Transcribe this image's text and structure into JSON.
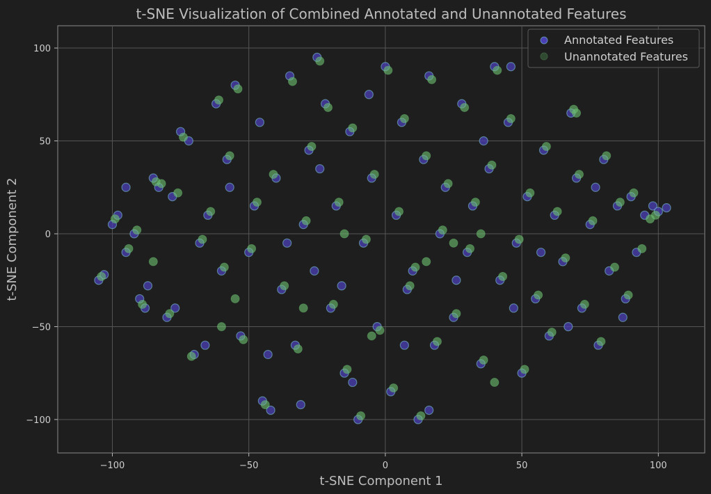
{
  "chart_data": {
    "type": "scatter",
    "title": "t-SNE Visualization of Combined Annotated and Unannotated Features",
    "xlabel": "t-SNE Component 1",
    "ylabel": "t-SNE Component 2",
    "xlim": [
      -120,
      117
    ],
    "ylim": [
      -118,
      112
    ],
    "xticks": [
      -100,
      -50,
      0,
      50,
      100
    ],
    "yticks": [
      -100,
      -50,
      0,
      50,
      100
    ],
    "xtick_labels": [
      "−100",
      "−50",
      "0",
      "50",
      "100"
    ],
    "ytick_labels": [
      "−100",
      "−50",
      "0",
      "50",
      "100"
    ],
    "grid": true,
    "legend_position": "top-right",
    "colors": {
      "background": "#1e1e1e",
      "grid": "#555555",
      "annotated": "#4a3fb5",
      "annotated_edge": "#7fc8d8",
      "unannotated": "#6cc070"
    },
    "series": [
      {
        "name": "Annotated Features",
        "color": "#4a3fb5",
        "points": [
          [
            -105,
            -25
          ],
          [
            -103,
            -22
          ],
          [
            -100,
            5
          ],
          [
            -98,
            10
          ],
          [
            -95,
            -10
          ],
          [
            -92,
            0
          ],
          [
            -90,
            -35
          ],
          [
            -88,
            -40
          ],
          [
            -85,
            30
          ],
          [
            -83,
            25
          ],
          [
            -80,
            -45
          ],
          [
            -78,
            20
          ],
          [
            -75,
            55
          ],
          [
            -72,
            50
          ],
          [
            -70,
            -65
          ],
          [
            -68,
            -5
          ],
          [
            -65,
            10
          ],
          [
            -62,
            70
          ],
          [
            -60,
            -20
          ],
          [
            -58,
            40
          ],
          [
            -55,
            80
          ],
          [
            -53,
            -55
          ],
          [
            -50,
            -10
          ],
          [
            -48,
            15
          ],
          [
            -46,
            60
          ],
          [
            -45,
            -90
          ],
          [
            -42,
            -95
          ],
          [
            -40,
            30
          ],
          [
            -38,
            -30
          ],
          [
            -35,
            85
          ],
          [
            -33,
            -60
          ],
          [
            -30,
            5
          ],
          [
            -28,
            45
          ],
          [
            -26,
            -20
          ],
          [
            -25,
            95
          ],
          [
            -22,
            70
          ],
          [
            -20,
            -40
          ],
          [
            -18,
            15
          ],
          [
            -15,
            -75
          ],
          [
            -13,
            55
          ],
          [
            -10,
            -100
          ],
          [
            -8,
            -5
          ],
          [
            -5,
            30
          ],
          [
            -3,
            -50
          ],
          [
            0,
            90
          ],
          [
            2,
            -85
          ],
          [
            4,
            10
          ],
          [
            6,
            60
          ],
          [
            8,
            -30
          ],
          [
            10,
            -20
          ],
          [
            12,
            -100
          ],
          [
            14,
            40
          ],
          [
            16,
            85
          ],
          [
            18,
            -60
          ],
          [
            20,
            0
          ],
          [
            22,
            25
          ],
          [
            25,
            -45
          ],
          [
            28,
            70
          ],
          [
            30,
            -10
          ],
          [
            32,
            15
          ],
          [
            35,
            -70
          ],
          [
            38,
            35
          ],
          [
            40,
            90
          ],
          [
            42,
            -25
          ],
          [
            45,
            60
          ],
          [
            48,
            -5
          ],
          [
            50,
            -75
          ],
          [
            52,
            20
          ],
          [
            55,
            -35
          ],
          [
            58,
            45
          ],
          [
            60,
            -55
          ],
          [
            62,
            10
          ],
          [
            65,
            -15
          ],
          [
            68,
            65
          ],
          [
            70,
            30
          ],
          [
            72,
            -40
          ],
          [
            75,
            5
          ],
          [
            78,
            -60
          ],
          [
            80,
            40
          ],
          [
            82,
            -20
          ],
          [
            85,
            15
          ],
          [
            88,
            -35
          ],
          [
            90,
            20
          ],
          [
            92,
            -10
          ],
          [
            95,
            10
          ],
          [
            98,
            15
          ],
          [
            100,
            12
          ],
          [
            103,
            14
          ],
          [
            -95,
            25
          ],
          [
            -87,
            -28
          ],
          [
            -77,
            -40
          ],
          [
            -66,
            -60
          ],
          [
            -57,
            25
          ],
          [
            -43,
            -65
          ],
          [
            -36,
            -5
          ],
          [
            -24,
            35
          ],
          [
            -16,
            -28
          ],
          [
            -6,
            75
          ],
          [
            7,
            -60
          ],
          [
            26,
            -25
          ],
          [
            36,
            50
          ],
          [
            47,
            -40
          ],
          [
            57,
            -10
          ],
          [
            67,
            -50
          ],
          [
            77,
            25
          ],
          [
            87,
            -45
          ],
          [
            -12,
            -80
          ],
          [
            16,
            -95
          ],
          [
            -31,
            -92
          ],
          [
            46,
            90
          ]
        ]
      },
      {
        "name": "Unannotated Features",
        "color": "#6cc070",
        "points": [
          [
            -104,
            -23
          ],
          [
            -99,
            8
          ],
          [
            -94,
            -8
          ],
          [
            -91,
            2
          ],
          [
            -89,
            -38
          ],
          [
            -84,
            28
          ],
          [
            -82,
            27
          ],
          [
            -79,
            -43
          ],
          [
            -76,
            22
          ],
          [
            -74,
            52
          ],
          [
            -71,
            -66
          ],
          [
            -67,
            -3
          ],
          [
            -64,
            12
          ],
          [
            -61,
            72
          ],
          [
            -59,
            -18
          ],
          [
            -57,
            42
          ],
          [
            -54,
            78
          ],
          [
            -52,
            -57
          ],
          [
            -49,
            -8
          ],
          [
            -47,
            17
          ],
          [
            -44,
            -92
          ],
          [
            -41,
            32
          ],
          [
            -37,
            -28
          ],
          [
            -34,
            82
          ],
          [
            -32,
            -62
          ],
          [
            -29,
            7
          ],
          [
            -27,
            47
          ],
          [
            -24,
            93
          ],
          [
            -21,
            68
          ],
          [
            -19,
            -38
          ],
          [
            -17,
            17
          ],
          [
            -14,
            -73
          ],
          [
            -12,
            57
          ],
          [
            -9,
            -98
          ],
          [
            -7,
            -3
          ],
          [
            -4,
            32
          ],
          [
            -2,
            -52
          ],
          [
            1,
            88
          ],
          [
            3,
            -83
          ],
          [
            5,
            12
          ],
          [
            7,
            62
          ],
          [
            9,
            -28
          ],
          [
            11,
            -18
          ],
          [
            13,
            -98
          ],
          [
            15,
            42
          ],
          [
            17,
            83
          ],
          [
            19,
            -58
          ],
          [
            21,
            2
          ],
          [
            23,
            27
          ],
          [
            26,
            -43
          ],
          [
            29,
            68
          ],
          [
            31,
            -8
          ],
          [
            33,
            17
          ],
          [
            36,
            -68
          ],
          [
            39,
            37
          ],
          [
            41,
            88
          ],
          [
            43,
            -23
          ],
          [
            46,
            62
          ],
          [
            49,
            -3
          ],
          [
            51,
            -73
          ],
          [
            53,
            22
          ],
          [
            56,
            -33
          ],
          [
            59,
            47
          ],
          [
            61,
            -53
          ],
          [
            63,
            12
          ],
          [
            66,
            -13
          ],
          [
            69,
            67
          ],
          [
            71,
            32
          ],
          [
            73,
            -38
          ],
          [
            76,
            7
          ],
          [
            79,
            -58
          ],
          [
            81,
            42
          ],
          [
            84,
            -18
          ],
          [
            86,
            17
          ],
          [
            89,
            -33
          ],
          [
            91,
            22
          ],
          [
            94,
            -8
          ],
          [
            97,
            8
          ],
          [
            99,
            10
          ],
          [
            -30,
            -40
          ],
          [
            -15,
            0
          ],
          [
            35,
            0
          ],
          [
            25,
            -5
          ],
          [
            -5,
            -55
          ],
          [
            -60,
            -50
          ],
          [
            15,
            -15
          ],
          [
            70,
            65
          ],
          [
            -85,
            -15
          ],
          [
            -55,
            -35
          ],
          [
            40,
            -80
          ]
        ]
      }
    ]
  }
}
